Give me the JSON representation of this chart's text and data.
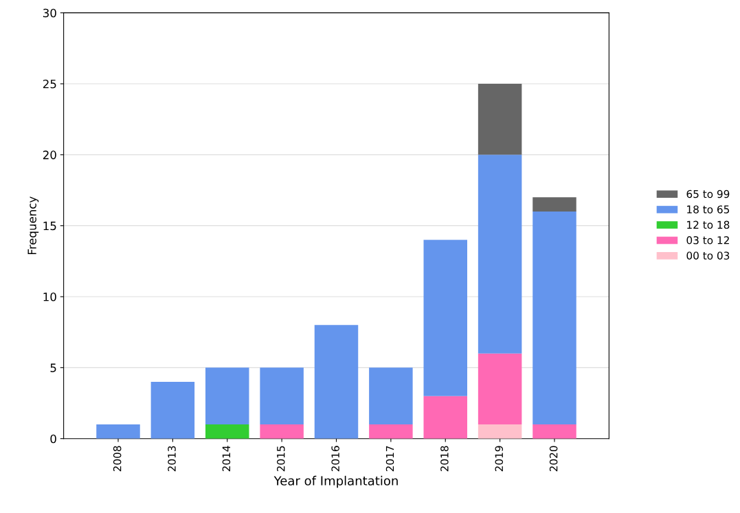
{
  "chart_data": {
    "type": "bar",
    "stacked": true,
    "xlabel": "Year of Implantation",
    "ylabel": "Frequency",
    "categories": [
      "2008",
      "2013",
      "2014",
      "2015",
      "2016",
      "2017",
      "2018",
      "2019",
      "2020"
    ],
    "series": [
      {
        "name": "00 to 03",
        "color": "#ffc0cb",
        "values": [
          null,
          null,
          null,
          null,
          null,
          null,
          null,
          1,
          null
        ]
      },
      {
        "name": "03 to 12",
        "color": "#ff69b4",
        "values": [
          null,
          null,
          null,
          1,
          null,
          1,
          3,
          5,
          1
        ]
      },
      {
        "name": "12 to 18",
        "color": "#32cd32",
        "values": [
          null,
          null,
          1,
          null,
          null,
          null,
          null,
          null,
          null
        ]
      },
      {
        "name": "18 to 65",
        "color": "#6495ed",
        "values": [
          1,
          4,
          4,
          4,
          8,
          4,
          11,
          14,
          15
        ]
      },
      {
        "name": "65 to 99",
        "color": "#666666",
        "values": [
          null,
          null,
          null,
          null,
          null,
          null,
          null,
          5,
          1
        ]
      }
    ],
    "ylim": [
      0,
      30
    ],
    "yticks": [
      0,
      5,
      10,
      15,
      20,
      25,
      30
    ],
    "grid": "y",
    "legend": "right"
  }
}
